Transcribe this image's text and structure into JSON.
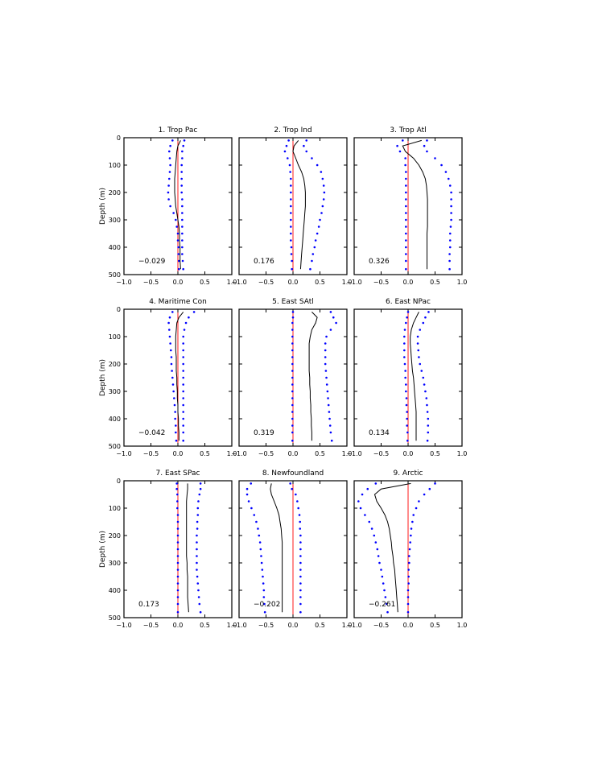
{
  "chart_data": {
    "type": "line",
    "layout": "3x3 grid of profile panels",
    "ylabel": "Depth (m)",
    "ylim": [
      500,
      0
    ],
    "xlim": [
      -1.0,
      1.0
    ],
    "yticks": [
      0,
      100,
      200,
      300,
      400,
      500
    ],
    "ytick_labels": [
      "0",
      "100",
      "200",
      "300",
      "400",
      "500"
    ],
    "xticks": [
      -1.0,
      -0.5,
      0.0,
      0.5,
      1.0
    ],
    "xtick_labels": [
      "−1.0",
      "−0.5",
      "0.0",
      "0.5",
      "1.0"
    ],
    "colors": {
      "mean": "#000000",
      "bounds": "#0000ff",
      "zero_line": "#ff0000"
    },
    "series_legend": [
      "mean correlation (solid black)",
      "bounds (blue dots)",
      "zero reference (red)"
    ],
    "depths": [
      10,
      30,
      50,
      75,
      100,
      125,
      150,
      175,
      200,
      225,
      250,
      275,
      300,
      325,
      350,
      375,
      400,
      425,
      450,
      480
    ],
    "panels": [
      {
        "title": "1. Trop Pac",
        "label": "−0.029",
        "mean": [
          0.05,
          0.0,
          -0.02,
          -0.03,
          -0.04,
          -0.05,
          -0.06,
          -0.06,
          -0.06,
          -0.05,
          -0.04,
          -0.02,
          0.0,
          0.02,
          0.03,
          0.03,
          0.04,
          0.04,
          0.04,
          0.05
        ],
        "lower": [
          -0.1,
          -0.14,
          -0.16,
          -0.15,
          -0.14,
          -0.15,
          -0.16,
          -0.17,
          -0.18,
          -0.17,
          -0.14,
          -0.08,
          -0.04,
          -0.02,
          0.0,
          0.0,
          0.01,
          0.01,
          0.02,
          0.02
        ],
        "upper": [
          0.12,
          0.1,
          0.08,
          0.08,
          0.07,
          0.07,
          0.07,
          0.07,
          0.07,
          0.08,
          0.08,
          0.08,
          0.08,
          0.08,
          0.08,
          0.08,
          0.08,
          0.08,
          0.09,
          0.1
        ]
      },
      {
        "title": "2. Trop Ind",
        "label": "0.176",
        "mean": [
          0.1,
          0.02,
          0.0,
          0.05,
          0.1,
          0.16,
          0.2,
          0.22,
          0.23,
          0.23,
          0.23,
          0.22,
          0.21,
          0.2,
          0.19,
          0.18,
          0.17,
          0.16,
          0.15,
          0.14
        ],
        "lower": [
          -0.08,
          -0.12,
          -0.15,
          -0.1,
          -0.06,
          -0.05,
          -0.04,
          -0.04,
          -0.04,
          -0.04,
          -0.04,
          -0.04,
          -0.04,
          -0.04,
          -0.04,
          -0.04,
          -0.03,
          -0.03,
          -0.02,
          -0.02
        ],
        "upper": [
          0.25,
          0.2,
          0.25,
          0.35,
          0.45,
          0.52,
          0.55,
          0.57,
          0.58,
          0.57,
          0.55,
          0.53,
          0.5,
          0.48,
          0.45,
          0.42,
          0.4,
          0.37,
          0.35,
          0.32
        ]
      },
      {
        "title": "3. Trop Atl",
        "label": "0.326",
        "mean": [
          0.25,
          -0.1,
          -0.05,
          0.1,
          0.2,
          0.27,
          0.32,
          0.34,
          0.35,
          0.36,
          0.36,
          0.36,
          0.36,
          0.36,
          0.35,
          0.35,
          0.35,
          0.35,
          0.35,
          0.35
        ],
        "lower": [
          -0.1,
          -0.2,
          -0.15,
          -0.05,
          -0.05,
          -0.04,
          -0.04,
          -0.04,
          -0.04,
          -0.04,
          -0.04,
          -0.04,
          -0.04,
          -0.04,
          -0.04,
          -0.04,
          -0.04,
          -0.04,
          -0.04,
          -0.04
        ],
        "upper": [
          0.35,
          0.3,
          0.35,
          0.5,
          0.62,
          0.7,
          0.75,
          0.78,
          0.8,
          0.8,
          0.8,
          0.8,
          0.8,
          0.79,
          0.78,
          0.78,
          0.78,
          0.77,
          0.77,
          0.77
        ]
      },
      {
        "title": "4. Maritime Con",
        "label": "−0.042",
        "mean": [
          0.1,
          0.02,
          -0.02,
          -0.03,
          -0.04,
          -0.04,
          -0.04,
          -0.03,
          -0.03,
          -0.03,
          -0.02,
          -0.02,
          -0.01,
          -0.01,
          0.0,
          0.0,
          0.01,
          0.01,
          0.02,
          0.02
        ],
        "lower": [
          -0.1,
          -0.15,
          -0.17,
          -0.16,
          -0.15,
          -0.14,
          -0.13,
          -0.12,
          -0.12,
          -0.11,
          -0.1,
          -0.09,
          -0.08,
          -0.07,
          -0.06,
          -0.05,
          -0.05,
          -0.04,
          -0.04,
          -0.03
        ],
        "upper": [
          0.3,
          0.2,
          0.15,
          0.12,
          0.1,
          0.1,
          0.1,
          0.1,
          0.1,
          0.1,
          0.1,
          0.1,
          0.1,
          0.1,
          0.1,
          0.1,
          0.1,
          0.1,
          0.1,
          0.1
        ]
      },
      {
        "title": "5. East SAtl",
        "label": "0.319",
        "mean": [
          0.35,
          0.45,
          0.42,
          0.35,
          0.32,
          0.3,
          0.3,
          0.3,
          0.3,
          0.3,
          0.31,
          0.31,
          0.32,
          0.32,
          0.33,
          0.33,
          0.34,
          0.34,
          0.35,
          0.35
        ],
        "lower": [
          0.0,
          0.0,
          -0.01,
          -0.01,
          -0.01,
          -0.01,
          -0.01,
          -0.01,
          -0.01,
          -0.01,
          -0.01,
          -0.01,
          -0.01,
          -0.01,
          -0.01,
          -0.01,
          -0.01,
          -0.01,
          -0.01,
          -0.01
        ],
        "upper": [
          0.7,
          0.75,
          0.8,
          0.7,
          0.62,
          0.6,
          0.6,
          0.6,
          0.6,
          0.61,
          0.62,
          0.63,
          0.64,
          0.65,
          0.66,
          0.67,
          0.68,
          0.69,
          0.7,
          0.72
        ]
      },
      {
        "title": "6. East NPac",
        "label": "0.134",
        "mean": [
          0.2,
          0.15,
          0.1,
          0.06,
          0.04,
          0.04,
          0.05,
          0.06,
          0.07,
          0.08,
          0.1,
          0.11,
          0.12,
          0.13,
          0.14,
          0.15,
          0.15,
          0.15,
          0.15,
          0.15
        ],
        "lower": [
          0.0,
          -0.02,
          -0.04,
          -0.06,
          -0.07,
          -0.07,
          -0.07,
          -0.07,
          -0.06,
          -0.05,
          -0.05,
          -0.04,
          -0.04,
          -0.03,
          -0.03,
          -0.02,
          -0.02,
          -0.02,
          -0.01,
          -0.01
        ],
        "upper": [
          0.38,
          0.32,
          0.28,
          0.22,
          0.18,
          0.18,
          0.19,
          0.2,
          0.22,
          0.25,
          0.28,
          0.3,
          0.32,
          0.34,
          0.35,
          0.36,
          0.37,
          0.37,
          0.37,
          0.36
        ]
      },
      {
        "title": "7. East SPac",
        "label": "0.173",
        "mean": [
          0.18,
          0.18,
          0.17,
          0.16,
          0.16,
          0.16,
          0.16,
          0.16,
          0.16,
          0.16,
          0.16,
          0.16,
          0.17,
          0.17,
          0.18,
          0.18,
          0.18,
          0.18,
          0.19,
          0.2
        ],
        "lower": [
          -0.02,
          -0.02,
          -0.01,
          -0.01,
          -0.01,
          0.0,
          0.0,
          0.0,
          0.0,
          0.0,
          0.0,
          0.0,
          0.0,
          0.0,
          0.0,
          0.0,
          0.0,
          0.0,
          0.0,
          0.0
        ],
        "upper": [
          0.42,
          0.42,
          0.4,
          0.38,
          0.37,
          0.37,
          0.36,
          0.36,
          0.35,
          0.35,
          0.35,
          0.35,
          0.35,
          0.35,
          0.36,
          0.37,
          0.38,
          0.39,
          0.4,
          0.42
        ]
      },
      {
        "title": "8. Newfoundland",
        "label": "−0.202",
        "mean": [
          -0.4,
          -0.42,
          -0.4,
          -0.35,
          -0.3,
          -0.26,
          -0.24,
          -0.22,
          -0.21,
          -0.2,
          -0.2,
          -0.2,
          -0.2,
          -0.2,
          -0.2,
          -0.2,
          -0.2,
          -0.2,
          -0.2,
          -0.2
        ],
        "lower": [
          -0.78,
          -0.85,
          -0.85,
          -0.82,
          -0.77,
          -0.72,
          -0.68,
          -0.65,
          -0.63,
          -0.61,
          -0.6,
          -0.59,
          -0.58,
          -0.57,
          -0.56,
          -0.55,
          -0.54,
          -0.54,
          -0.53,
          -0.52
        ],
        "upper": [
          -0.05,
          -0.02,
          0.05,
          0.08,
          0.1,
          0.12,
          0.13,
          0.13,
          0.14,
          0.14,
          0.14,
          0.14,
          0.14,
          0.14,
          0.14,
          0.14,
          0.14,
          0.14,
          0.14,
          0.14
        ]
      },
      {
        "title": "9. Arctic",
        "label": "−0.261",
        "mean": [
          0.05,
          -0.5,
          -0.62,
          -0.58,
          -0.5,
          -0.43,
          -0.38,
          -0.35,
          -0.33,
          -0.31,
          -0.3,
          -0.28,
          -0.27,
          -0.25,
          -0.24,
          -0.23,
          -0.22,
          -0.21,
          -0.2,
          -0.19
        ],
        "lower": [
          -0.6,
          -0.75,
          -0.85,
          -0.92,
          -0.88,
          -0.8,
          -0.72,
          -0.67,
          -0.63,
          -0.6,
          -0.57,
          -0.55,
          -0.53,
          -0.5,
          -0.48,
          -0.46,
          -0.44,
          -0.42,
          -0.4,
          -0.38
        ],
        "upper": [
          0.5,
          0.4,
          0.3,
          0.2,
          0.15,
          0.1,
          0.08,
          0.06,
          0.05,
          0.04,
          0.03,
          0.02,
          0.02,
          0.01,
          0.01,
          0.01,
          0.0,
          0.0,
          0.0,
          0.0
        ]
      }
    ]
  }
}
